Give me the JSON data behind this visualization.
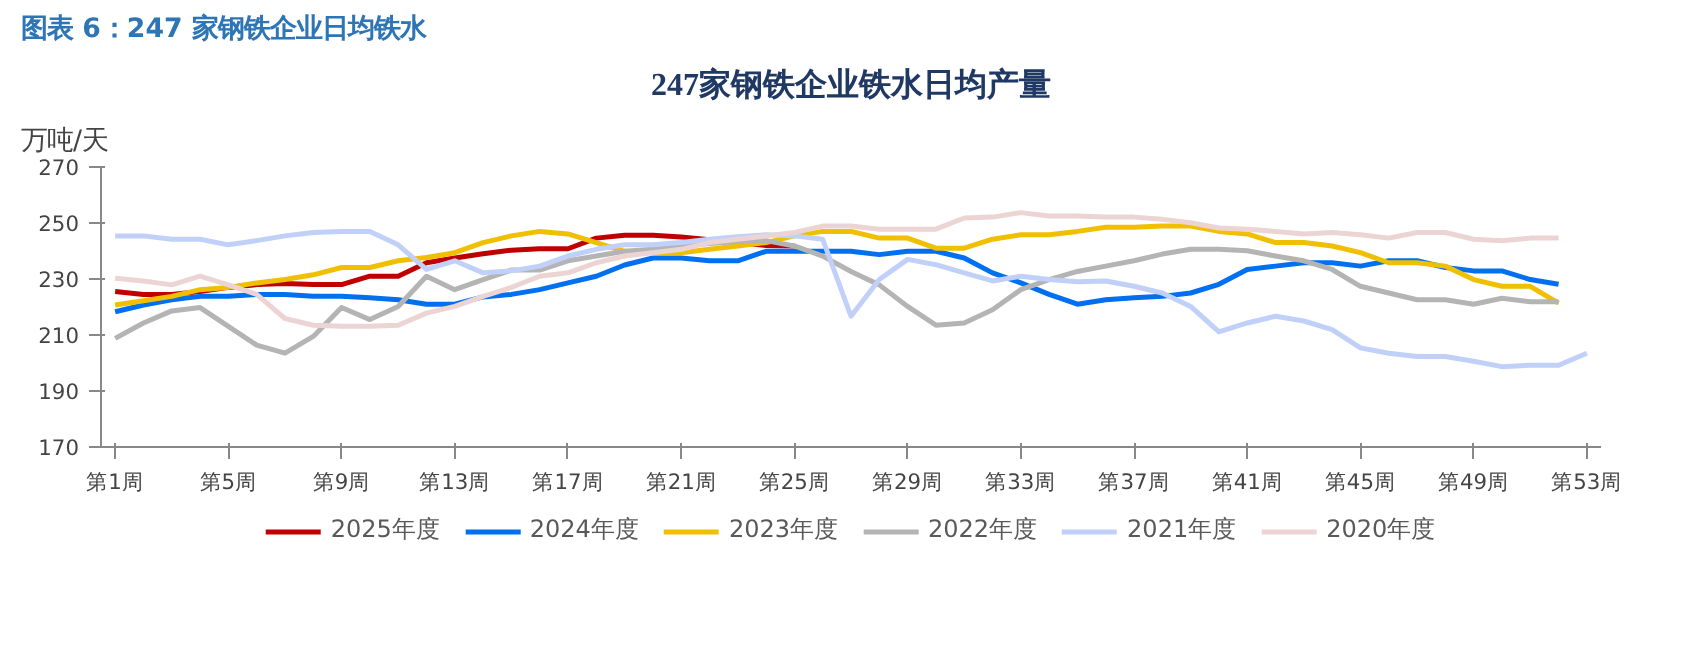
{
  "chart_data": {
    "type": "line",
    "title": "247家钢铁企业铁水日均产量",
    "ylabel": "万吨/天",
    "annotations": [
      "图表 6：247 家钢铁企业日均铁水"
    ],
    "categories": [
      "第1周",
      null,
      null,
      null,
      "第5周",
      null,
      null,
      null,
      "第9周",
      null,
      null,
      null,
      "第13周",
      null,
      null,
      null,
      "第17周",
      null,
      null,
      null,
      "第21周",
      null,
      null,
      null,
      "第25周",
      null,
      null,
      null,
      "第29周",
      null,
      null,
      null,
      "第33周",
      null,
      null,
      null,
      "第37周",
      null,
      null,
      null,
      "第41周",
      null,
      null,
      null,
      "第45周",
      null,
      null,
      null,
      "第49周",
      null,
      null,
      null,
      "第53周"
    ],
    "ylim": [
      170,
      270
    ],
    "yticks": [
      170,
      190,
      210,
      230,
      250,
      270
    ],
    "grid": false,
    "legend": "bottom",
    "marker": "none",
    "line_style": "solid",
    "series": [
      {
        "name": "2025年度",
        "color": "#c00000",
        "values": [
          225.5,
          224.5,
          224.5,
          225.5,
          227,
          228,
          228.4,
          228,
          228,
          231,
          231,
          235.8,
          237.5,
          239,
          240.3,
          240.8,
          240.8,
          244.6,
          245.6,
          245.6,
          245,
          244,
          243,
          242,
          241.8,
          null,
          null,
          null,
          null,
          null,
          null,
          null,
          null,
          null,
          null,
          null,
          null,
          null,
          null,
          null,
          null,
          null,
          null,
          null,
          null,
          null,
          null,
          null,
          null,
          null,
          null,
          null,
          null
        ]
      },
      {
        "name": "2024年度",
        "color": "#0070f0",
        "values": [
          218.3,
          220.7,
          222.6,
          223.8,
          223.8,
          224.5,
          224.5,
          223.8,
          223.8,
          223.3,
          222.6,
          221,
          221,
          223.6,
          224.5,
          226.2,
          228.6,
          231,
          235,
          237.5,
          237.5,
          236.5,
          236.5,
          239.9,
          239.9,
          239.9,
          239.9,
          238.7,
          239.9,
          239.9,
          237.5,
          232.2,
          228.6,
          224.5,
          221,
          222.6,
          223.3,
          223.8,
          225,
          228.1,
          233.4,
          234.6,
          235.8,
          235.8,
          234.6,
          236.5,
          236.5,
          234.1,
          232.9,
          232.9,
          229.8,
          228.1,
          null
        ]
      },
      {
        "name": "2023年度",
        "color": "#f0c000",
        "values": [
          220.7,
          222.2,
          223.8,
          226.2,
          227,
          228.6,
          229.8,
          231.5,
          234.1,
          234.1,
          236.5,
          237.7,
          239.4,
          243,
          245.4,
          247,
          246.1,
          243,
          239.9,
          239.4,
          239.4,
          240.6,
          241.8,
          243,
          245.4,
          247,
          247,
          244.6,
          244.6,
          241,
          241,
          244.2,
          245.8,
          245.8,
          247,
          248.5,
          248.5,
          248.9,
          248.9,
          247,
          246.1,
          243,
          243,
          241.8,
          239.4,
          235.8,
          235.8,
          234.6,
          229.8,
          227.4,
          227.4,
          221.4,
          null
        ]
      },
      {
        "name": "2022年度",
        "color": "#b4b4b4",
        "values": [
          208.8,
          214.3,
          218.6,
          219.8,
          213.1,
          206.4,
          203.5,
          209.5,
          219.8,
          215.5,
          220.2,
          231,
          226.2,
          229.8,
          233.2,
          233.2,
          236.5,
          238.2,
          239.9,
          240.6,
          241.8,
          242.7,
          243.4,
          243.7,
          241.8,
          238.2,
          232.7,
          227.9,
          220.2,
          213.5,
          214.3,
          219,
          226.2,
          229.8,
          232.7,
          234.6,
          236.5,
          238.9,
          240.6,
          240.6,
          240.1,
          238.2,
          236.5,
          233.4,
          227.4,
          225,
          222.6,
          222.6,
          221,
          223.1,
          221.9,
          221.9,
          null
        ]
      },
      {
        "name": "2021年度",
        "color": "#c0d0f8",
        "values": [
          245.4,
          245.4,
          244.2,
          244.2,
          242.2,
          243.7,
          245.4,
          246.6,
          247,
          247,
          242.2,
          233.4,
          236.5,
          232.2,
          232.9,
          234.6,
          238.2,
          240.6,
          242.2,
          242.2,
          243,
          244.2,
          245.1,
          245.8,
          245.4,
          244.2,
          216.7,
          229.8,
          237,
          235.1,
          232.2,
          229.3,
          231,
          229.8,
          229,
          229.3,
          227.4,
          225,
          220.2,
          211.1,
          214.3,
          216.7,
          215,
          211.9,
          205.4,
          203.5,
          202.3,
          202.3,
          200.6,
          198.7,
          199.2,
          199.2,
          203.5
        ]
      },
      {
        "name": "2020年度",
        "color": "#ecd4d4",
        "values": [
          230.3,
          229.3,
          227.9,
          231,
          227.9,
          224.5,
          215.9,
          213.5,
          213.1,
          213.1,
          213.5,
          217.8,
          220.2,
          223.8,
          227,
          231,
          232.2,
          235.8,
          238.2,
          239.4,
          240.6,
          243,
          244.2,
          245.4,
          246.6,
          248.9,
          248.9,
          247.8,
          247.8,
          247.8,
          251.8,
          252.1,
          253.7,
          252.5,
          252.5,
          252.1,
          252.1,
          251.3,
          250.1,
          248.2,
          247.8,
          247,
          246.1,
          246.6,
          245.8,
          244.6,
          246.6,
          246.6,
          244.2,
          243.7,
          244.6,
          244.6,
          null
        ]
      }
    ]
  }
}
